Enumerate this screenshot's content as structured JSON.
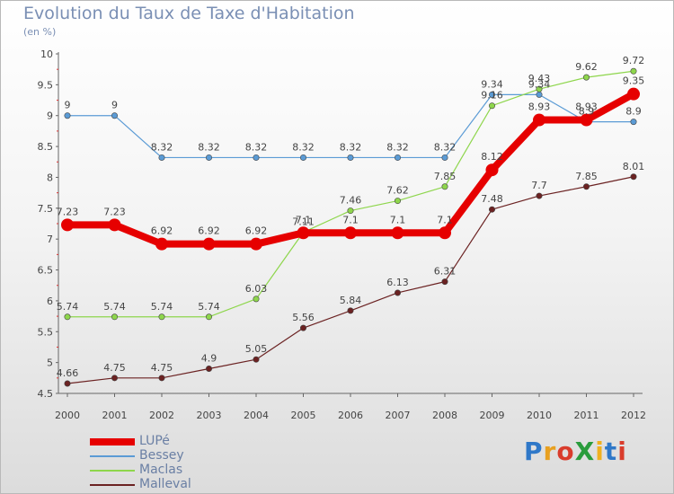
{
  "header": {
    "title": "Evolution du Taux de Taxe d'Habitation",
    "subtitle": "(en %)"
  },
  "logo": {
    "text": "ProXiti",
    "letters": [
      {
        "ch": "P",
        "color": "#2f78c8"
      },
      {
        "ch": "r",
        "color": "#e8a020"
      },
      {
        "ch": "o",
        "color": "#d93c2c"
      },
      {
        "ch": "X",
        "color": "#2a9c3c"
      },
      {
        "ch": "i",
        "color": "#f0b020"
      },
      {
        "ch": "t",
        "color": "#2f78c8"
      },
      {
        "ch": "i",
        "color": "#d93c2c"
      }
    ]
  },
  "chart_data": {
    "type": "line",
    "x": [
      "2000",
      "2001",
      "2002",
      "2003",
      "2004",
      "2005",
      "2006",
      "2007",
      "2008",
      "2009",
      "2010",
      "2011",
      "2012"
    ],
    "ylim": [
      4.5,
      10
    ],
    "yticks": [
      "4.5",
      "5",
      "5.5",
      "6",
      "6.5",
      "7",
      "7.5",
      "8",
      "8.5",
      "9",
      "9.5",
      "10"
    ],
    "grid": false,
    "series": [
      {
        "name": "LUPé",
        "color": "#e60000",
        "width": 8,
        "marker": 7,
        "values": [
          7.23,
          7.23,
          6.92,
          6.92,
          6.92,
          7.1,
          7.1,
          7.1,
          7.1,
          8.12,
          8.93,
          8.93,
          9.35
        ],
        "labels": [
          "7.23",
          "7.23",
          "6.92",
          "6.92",
          "6.92",
          "7.1",
          "7.1",
          "7.1",
          "7.1",
          "8.12",
          "8.93",
          "8.93",
          "9.35"
        ]
      },
      {
        "name": "Bessey",
        "color": "#5b9bd5",
        "width": 1.2,
        "marker": 3.2,
        "values": [
          9,
          9,
          8.32,
          8.32,
          8.32,
          8.32,
          8.32,
          8.32,
          8.32,
          9.34,
          9.34,
          8.9,
          8.9
        ],
        "labels": [
          "9",
          "9",
          "8.32",
          "8.32",
          "8.32",
          "8.32",
          "8.32",
          "8.32",
          "8.32",
          "9.34",
          "9.34",
          "8.9",
          "8.9"
        ]
      },
      {
        "name": "Maclas",
        "color": "#8ed64c",
        "width": 1.2,
        "marker": 3.2,
        "values": [
          5.74,
          5.74,
          5.74,
          5.74,
          6.03,
          7.11,
          7.46,
          7.62,
          7.85,
          9.16,
          9.43,
          9.62,
          9.72
        ],
        "labels": [
          "5.74",
          "5.74",
          "5.74",
          "5.74",
          "6.03",
          "7.11",
          "7.46",
          "7.62",
          "7.85",
          "9.16",
          "9.43",
          "9.62",
          "9.72"
        ]
      },
      {
        "name": "Malleval",
        "color": "#6b2222",
        "width": 1.2,
        "marker": 3.2,
        "values": [
          4.66,
          4.75,
          4.75,
          4.9,
          5.05,
          5.56,
          5.84,
          6.13,
          6.31,
          7.48,
          7.7,
          7.85,
          8.01
        ],
        "labels": [
          "4.66",
          "4.75",
          "4.75",
          "4.9",
          "5.05",
          "5.56",
          "5.84",
          "6.13",
          "6.31",
          "7.48",
          "7.7",
          "7.85",
          "8.01"
        ]
      }
    ]
  }
}
